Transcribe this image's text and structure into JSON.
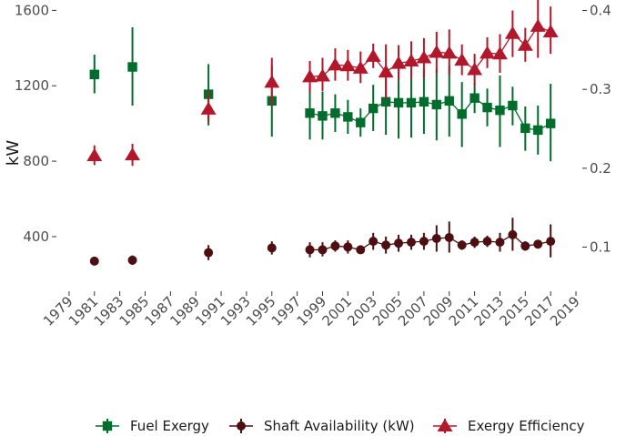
{
  "chart_data": {
    "type": "scatter",
    "title": "",
    "xlabel": "",
    "ylabel": "kW",
    "y2label": "",
    "x_range": [
      1978,
      2019.5
    ],
    "x_ticks": [
      1979,
      1981,
      1983,
      1985,
      1987,
      1989,
      1991,
      1993,
      1995,
      1997,
      1999,
      2001,
      2003,
      2005,
      2007,
      2009,
      2011,
      2013,
      2015,
      2017,
      2019
    ],
    "ylim": [
      110,
      1655
    ],
    "y_ticks": [
      400,
      800,
      1200,
      1600
    ],
    "y_tick_labels": [
      "400",
      "800",
      "1200",
      "1600"
    ],
    "y2lim": [
      0.044,
      0.4133
    ],
    "y2_ticks": [
      0.1,
      0.2,
      0.3,
      0.4
    ],
    "y2_tick_labels": [
      "0.1",
      "0.2",
      "0.3",
      "0.4"
    ],
    "grid": false,
    "legend_position": "bottom",
    "series": [
      {
        "name": "Fuel Exergy",
        "axis": "left",
        "marker": "square",
        "color": "#006d2c",
        "points": [
          {
            "x": 1981,
            "y": 1260,
            "lo": 1160,
            "hi": 1365
          },
          {
            "x": 1984,
            "y": 1300,
            "lo": 1095,
            "hi": 1510
          },
          {
            "x": 1990,
            "y": 1155,
            "lo": 990,
            "hi": 1315
          },
          {
            "x": 1995,
            "y": 1120,
            "lo": 930,
            "hi": 1310
          },
          {
            "x": 1998,
            "y": 1055,
            "lo": 915,
            "hi": 1200
          },
          {
            "x": 1999,
            "y": 1040,
            "lo": 915,
            "hi": 1170
          },
          {
            "x": 2000,
            "y": 1055,
            "lo": 955,
            "hi": 1155
          },
          {
            "x": 2001,
            "y": 1035,
            "lo": 945,
            "hi": 1125
          },
          {
            "x": 2002,
            "y": 1005,
            "lo": 930,
            "hi": 1080
          },
          {
            "x": 2003,
            "y": 1080,
            "lo": 960,
            "hi": 1205
          },
          {
            "x": 2004,
            "y": 1115,
            "lo": 940,
            "hi": 1290
          },
          {
            "x": 2005,
            "y": 1110,
            "lo": 920,
            "hi": 1300
          },
          {
            "x": 2006,
            "y": 1110,
            "lo": 925,
            "hi": 1295
          },
          {
            "x": 2007,
            "y": 1115,
            "lo": 945,
            "hi": 1285
          },
          {
            "x": 2008,
            "y": 1100,
            "lo": 910,
            "hi": 1290
          },
          {
            "x": 2009,
            "y": 1120,
            "lo": 930,
            "hi": 1305
          },
          {
            "x": 2010,
            "y": 1050,
            "lo": 875,
            "hi": 1220
          },
          {
            "x": 2011,
            "y": 1135,
            "lo": 1055,
            "hi": 1215
          },
          {
            "x": 2012,
            "y": 1085,
            "lo": 985,
            "hi": 1185
          },
          {
            "x": 2013,
            "y": 1070,
            "lo": 875,
            "hi": 1255
          },
          {
            "x": 2014,
            "y": 1095,
            "lo": 990,
            "hi": 1195
          },
          {
            "x": 2015,
            "y": 975,
            "lo": 855,
            "hi": 1090
          },
          {
            "x": 2016,
            "y": 965,
            "lo": 835,
            "hi": 1095
          },
          {
            "x": 2017,
            "y": 1000,
            "lo": 800,
            "hi": 1210
          }
        ]
      },
      {
        "name": "Shaft Availability (kW)",
        "axis": "left",
        "marker": "circle",
        "color": "#4d0f12",
        "points": [
          {
            "x": 1981,
            "y": 270,
            "lo": 262,
            "hi": 278
          },
          {
            "x": 1984,
            "y": 275,
            "lo": 250,
            "hi": 300
          },
          {
            "x": 1990,
            "y": 315,
            "lo": 275,
            "hi": 355
          },
          {
            "x": 1995,
            "y": 340,
            "lo": 305,
            "hi": 375
          },
          {
            "x": 1998,
            "y": 330,
            "lo": 290,
            "hi": 370
          },
          {
            "x": 1999,
            "y": 330,
            "lo": 295,
            "hi": 370
          },
          {
            "x": 2000,
            "y": 350,
            "lo": 320,
            "hi": 380
          },
          {
            "x": 2001,
            "y": 345,
            "lo": 310,
            "hi": 380
          },
          {
            "x": 2002,
            "y": 330,
            "lo": 310,
            "hi": 350
          },
          {
            "x": 2003,
            "y": 375,
            "lo": 330,
            "hi": 420
          },
          {
            "x": 2004,
            "y": 355,
            "lo": 310,
            "hi": 400
          },
          {
            "x": 2005,
            "y": 365,
            "lo": 320,
            "hi": 410
          },
          {
            "x": 2006,
            "y": 370,
            "lo": 330,
            "hi": 410
          },
          {
            "x": 2007,
            "y": 375,
            "lo": 330,
            "hi": 420
          },
          {
            "x": 2008,
            "y": 390,
            "lo": 320,
            "hi": 460
          },
          {
            "x": 2009,
            "y": 395,
            "lo": 315,
            "hi": 480
          },
          {
            "x": 2010,
            "y": 355,
            "lo": 330,
            "hi": 380
          },
          {
            "x": 2011,
            "y": 370,
            "lo": 340,
            "hi": 400
          },
          {
            "x": 2012,
            "y": 375,
            "lo": 345,
            "hi": 405
          },
          {
            "x": 2013,
            "y": 370,
            "lo": 320,
            "hi": 420
          },
          {
            "x": 2014,
            "y": 410,
            "lo": 325,
            "hi": 500
          },
          {
            "x": 2015,
            "y": 350,
            "lo": 325,
            "hi": 375
          },
          {
            "x": 2016,
            "y": 360,
            "lo": 345,
            "hi": 375
          },
          {
            "x": 2017,
            "y": 375,
            "lo": 290,
            "hi": 465
          }
        ]
      },
      {
        "name": "Exergy Efficiency",
        "axis": "right",
        "marker": "triangle",
        "color": "#b2182b",
        "points": [
          {
            "x": 1981,
            "y": 0.216,
            "lo": 0.204,
            "hi": 0.229
          },
          {
            "x": 1984,
            "y": 0.217,
            "lo": 0.203,
            "hi": 0.231
          },
          {
            "x": 1990,
            "y": 0.275,
            "lo": 0.259,
            "hi": 0.298
          },
          {
            "x": 1995,
            "y": 0.309,
            "lo": 0.279,
            "hi": 0.34
          },
          {
            "x": 1998,
            "y": 0.316,
            "lo": 0.296,
            "hi": 0.336
          },
          {
            "x": 1999,
            "y": 0.317,
            "lo": 0.298,
            "hi": 0.34
          },
          {
            "x": 2000,
            "y": 0.331,
            "lo": 0.311,
            "hi": 0.352
          },
          {
            "x": 2001,
            "y": 0.33,
            "lo": 0.311,
            "hi": 0.35
          },
          {
            "x": 2002,
            "y": 0.327,
            "lo": 0.308,
            "hi": 0.348
          },
          {
            "x": 2003,
            "y": 0.342,
            "lo": 0.327,
            "hi": 0.358
          },
          {
            "x": 2004,
            "y": 0.322,
            "lo": 0.288,
            "hi": 0.357
          },
          {
            "x": 2005,
            "y": 0.333,
            "lo": 0.311,
            "hi": 0.356
          },
          {
            "x": 2006,
            "y": 0.336,
            "lo": 0.313,
            "hi": 0.361
          },
          {
            "x": 2007,
            "y": 0.34,
            "lo": 0.315,
            "hi": 0.365
          },
          {
            "x": 2008,
            "y": 0.347,
            "lo": 0.321,
            "hi": 0.373
          },
          {
            "x": 2009,
            "y": 0.346,
            "lo": 0.318,
            "hi": 0.376
          },
          {
            "x": 2010,
            "y": 0.337,
            "lo": 0.318,
            "hi": 0.357
          },
          {
            "x": 2011,
            "y": 0.325,
            "lo": 0.305,
            "hi": 0.345
          },
          {
            "x": 2012,
            "y": 0.346,
            "lo": 0.327,
            "hi": 0.366
          },
          {
            "x": 2013,
            "y": 0.345,
            "lo": 0.321,
            "hi": 0.37
          },
          {
            "x": 2014,
            "y": 0.371,
            "lo": 0.341,
            "hi": 0.4
          },
          {
            "x": 2015,
            "y": 0.356,
            "lo": 0.335,
            "hi": 0.378
          },
          {
            "x": 2016,
            "y": 0.38,
            "lo": 0.34,
            "hi": 0.42
          },
          {
            "x": 2017,
            "y": 0.373,
            "lo": 0.345,
            "hi": 0.405
          }
        ]
      }
    ]
  }
}
